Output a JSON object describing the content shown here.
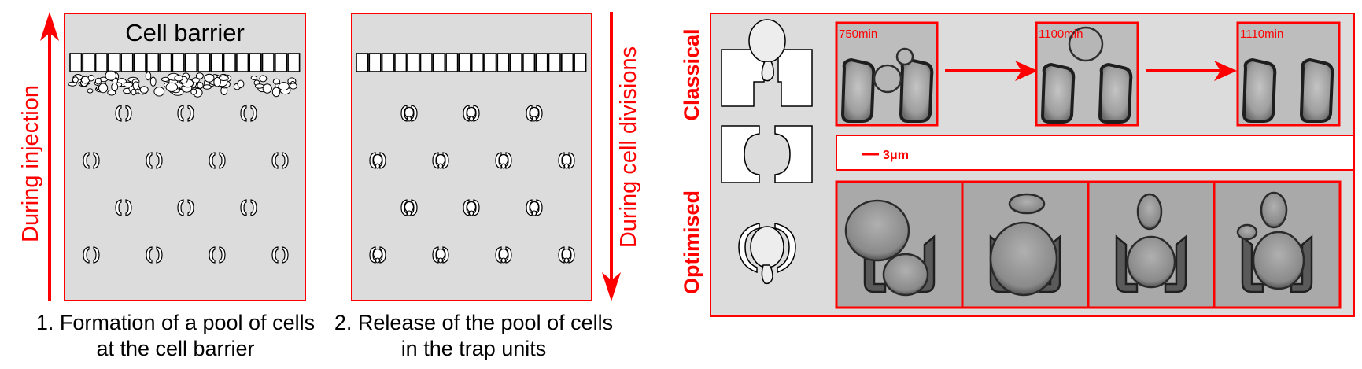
{
  "colors": {
    "accent": "#ff0000",
    "panel_bg": "#dcdcdc",
    "outline": "#000000"
  },
  "panel1": {
    "barrier_label": "Cell barrier",
    "arrow_label": "During injection",
    "caption_line1": "1. Formation of a pool of cells",
    "caption_line2": "at the cell barrier"
  },
  "panel2": {
    "arrow_label": "During cell divisions",
    "caption_line1": "2. Release of the pool of cells",
    "caption_line2": "in the trap units"
  },
  "panel3": {
    "classical_label": "Classical",
    "optimised_label": "Optimised",
    "timepoints": [
      "750min",
      "1100min",
      "1110min"
    ],
    "scale_bar_label": "3μm"
  }
}
